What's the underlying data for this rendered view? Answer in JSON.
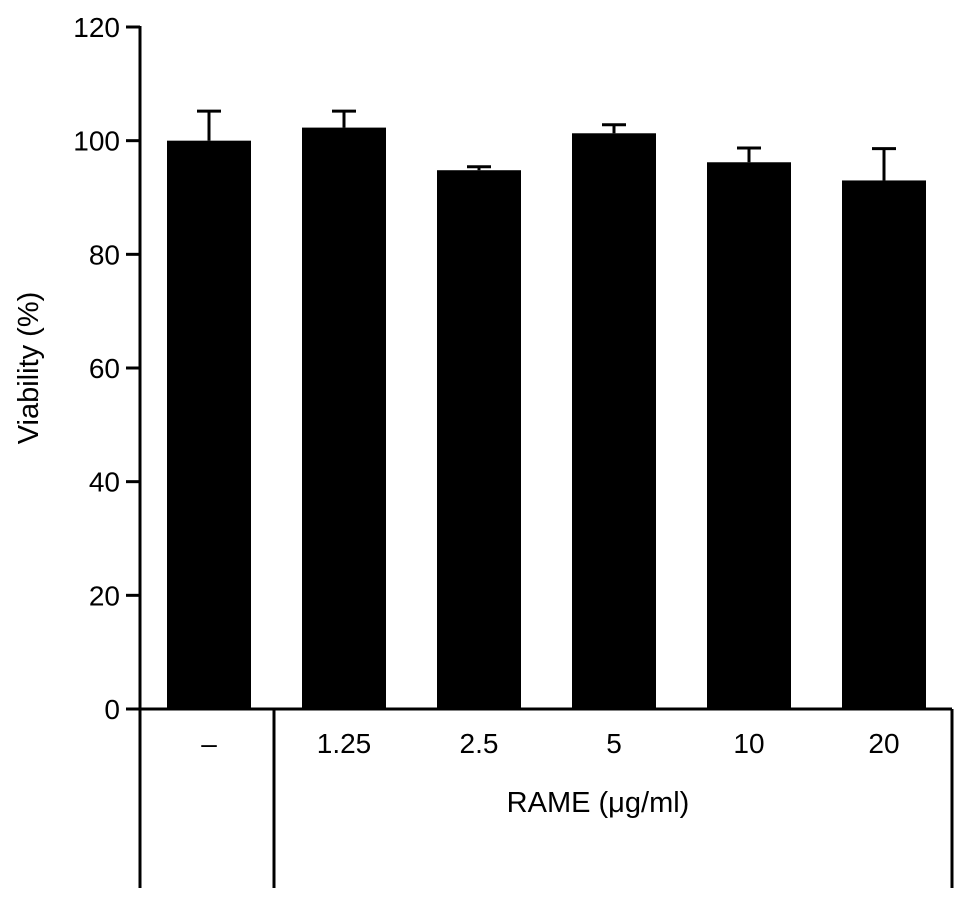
{
  "chart_data": {
    "type": "bar",
    "ylabel": "Viability (%)",
    "xlabel": "RAME (μg/ml)",
    "ylim": [
      0,
      120
    ],
    "yticks": [
      0,
      20,
      40,
      60,
      80,
      100,
      120
    ],
    "categories": [
      "–",
      "1.25",
      "2.5",
      "5",
      "10",
      "20"
    ],
    "values": [
      100,
      102.3,
      94.8,
      101.3,
      96.2,
      93
    ],
    "errors": [
      5.2,
      2.9,
      0.6,
      1.5,
      2.5,
      5.6
    ],
    "grid": false,
    "legend": "none",
    "bar_color": "#000000"
  }
}
